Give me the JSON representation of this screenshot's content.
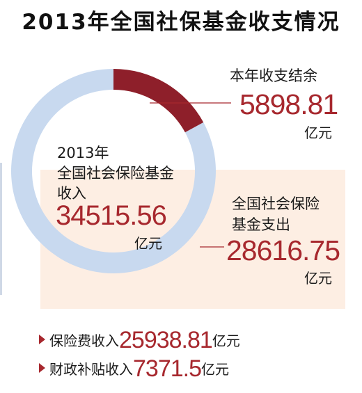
{
  "title": "2013年全国社保基金收支情况",
  "center": {
    "line1": "2013年",
    "line2": "全国社会保险基金",
    "line3": "收入",
    "value": "34515.56",
    "unit": "亿元"
  },
  "balance": {
    "label": "本年收支结余",
    "value": "5898.81",
    "unit": "亿元"
  },
  "expenditure": {
    "label_line1": "全国社会保险",
    "label_line2": "基金支出",
    "value": "28616.75",
    "unit": "亿元"
  },
  "bullets": [
    {
      "label": "保险费收入",
      "value": "25938.81",
      "unit": "亿元"
    },
    {
      "label": "财政补贴收入",
      "value": "7371.5",
      "unit": "亿元"
    }
  ],
  "colors": {
    "expenditure": "#c8d9ef",
    "balance": "#8e1f2a",
    "accent": "#a7282e",
    "band": "#fdeee3"
  },
  "chart_data": {
    "type": "pie",
    "title": "2013年全国社保基金收支情况",
    "total": 34515.56,
    "slices": [
      {
        "name": "本年收支结余",
        "value": 5898.81
      },
      {
        "name": "全国社会保险基金支出",
        "value": 28616.75
      }
    ]
  }
}
